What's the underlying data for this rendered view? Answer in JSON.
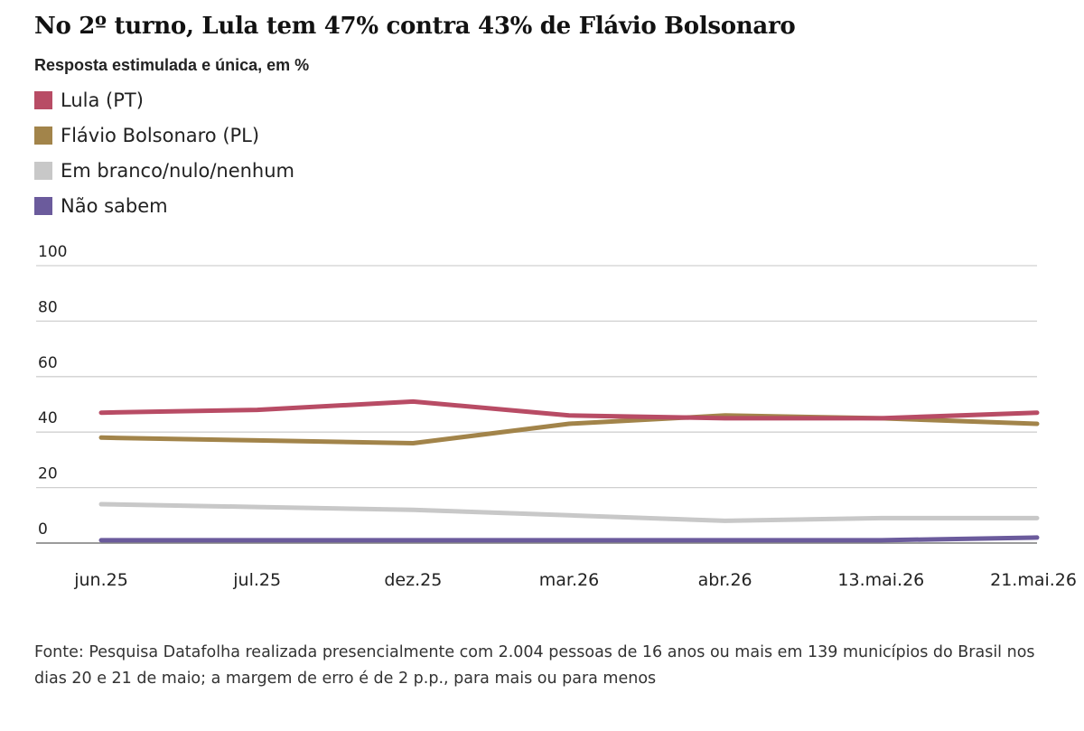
{
  "header": {
    "title": "No 2º turno, Lula tem 47% contra 43% de Flávio Bolsonaro",
    "subtitle": "Resposta estimulada e única, em %"
  },
  "legend": [
    {
      "label": "Lula (PT)",
      "color": "#b84c65"
    },
    {
      "label": "Flávio Bolsonaro (PL)",
      "color": "#a2844a"
    },
    {
      "label": "Em branco/nulo/nenhum",
      "color": "#c8c8c8"
    },
    {
      "label": "Não sabem",
      "color": "#6b5b9c"
    }
  ],
  "footer": {
    "source": "Fonte: Pesquisa Datafolha realizada presencialmente com 2.004 pessoas de 16 anos ou mais em 139 municípios do Brasil nos dias 20 e 21 de maio; a margem de erro é de 2 p.p., para mais ou para menos"
  },
  "chart_data": {
    "type": "line",
    "categories": [
      "jun.25",
      "jul.25",
      "dez.25",
      "mar.26",
      "abr.26",
      "13.mai.26",
      "21.mai.26"
    ],
    "yticks": [
      0,
      20,
      40,
      60,
      80,
      100
    ],
    "ylim": [
      0,
      100
    ],
    "grid": true,
    "legend_position": "top-left",
    "series": [
      {
        "name": "Lula (PT)",
        "color": "#b84c65",
        "values": [
          47,
          48,
          51,
          46,
          45,
          45,
          47
        ]
      },
      {
        "name": "Flávio Bolsonaro (PL)",
        "color": "#a2844a",
        "values": [
          38,
          37,
          36,
          43,
          46,
          45,
          43
        ]
      },
      {
        "name": "Em branco/nulo/nenhum",
        "color": "#c8c8c8",
        "values": [
          14,
          13,
          12,
          10,
          8,
          9,
          9
        ]
      },
      {
        "name": "Não sabem",
        "color": "#6b5b9c",
        "values": [
          1,
          1,
          1,
          1,
          1,
          1,
          2
        ]
      }
    ]
  }
}
